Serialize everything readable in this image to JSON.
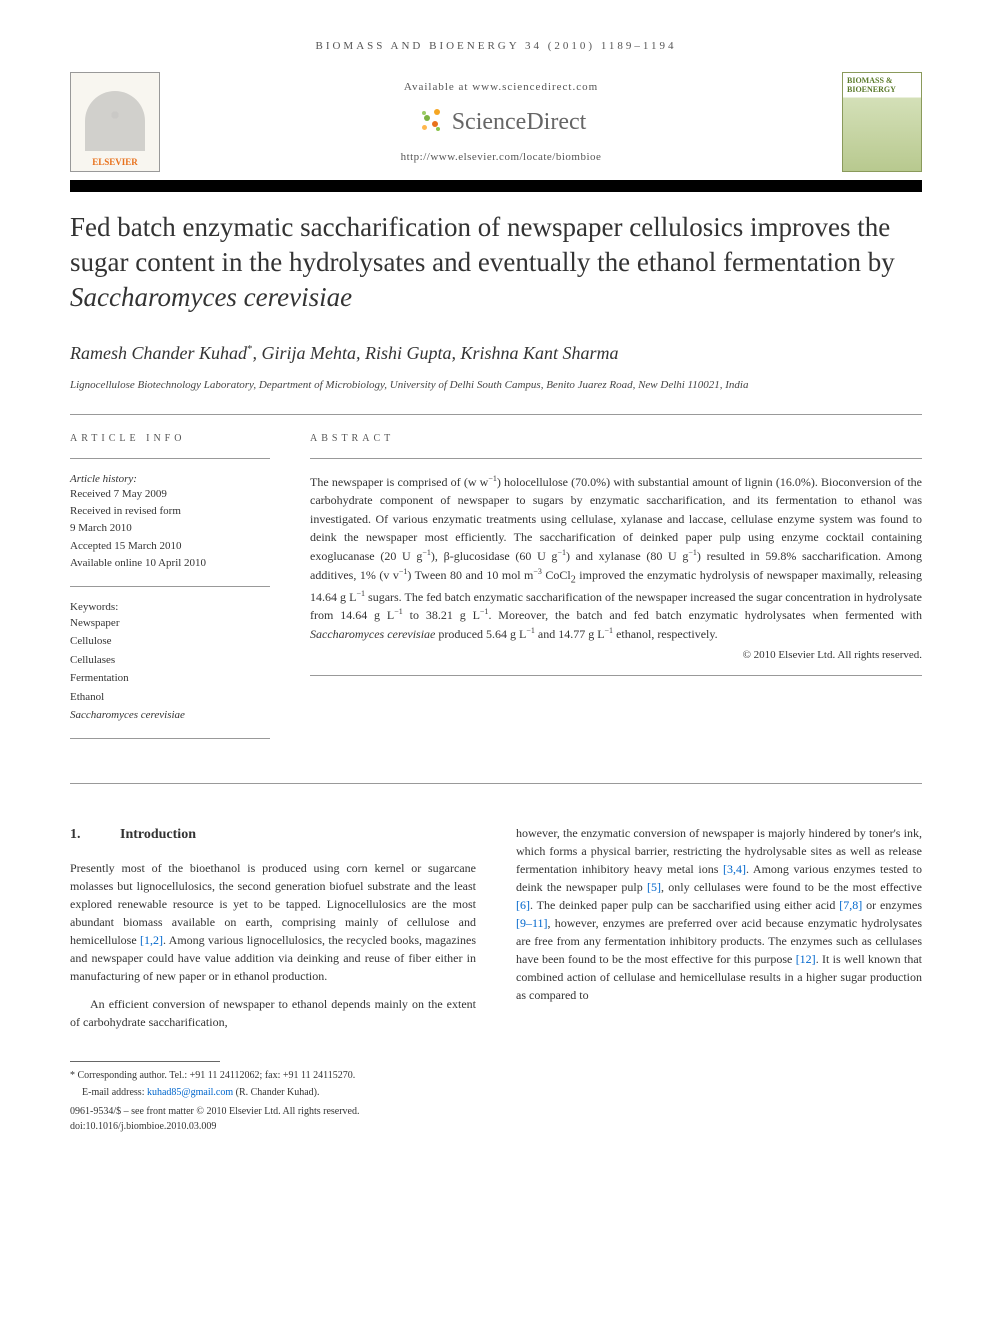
{
  "journal_header": "BIOMASS AND BIOENERGY 34 (2010) 1189–1194",
  "banner": {
    "available_at": "Available at www.sciencedirect.com",
    "sciencedirect": "ScienceDirect",
    "journal_url": "http://www.elsevier.com/locate/biombioe",
    "elsevier_label": "ELSEVIER",
    "cover_title": "BIOMASS & BIOENERGY"
  },
  "title_html": "Fed batch enzymatic saccharification of newspaper cellulosics improves the sugar content in the hydrolysates and eventually the ethanol fermentation by <em>Saccharomyces cerevisiae</em>",
  "authors_html": "Ramesh Chander Kuhad<sup>*</sup>, Girija Mehta, Rishi Gupta, Krishna Kant Sharma",
  "affiliation": "Lignocellulose Biotechnology Laboratory, Department of Microbiology, University of Delhi South Campus, Benito Juarez Road, New Delhi 110021, India",
  "info": {
    "heading": "ARTICLE INFO",
    "history_label": "Article history:",
    "history": [
      "Received 7 May 2009",
      "Received in revised form",
      "9 March 2010",
      "Accepted 15 March 2010",
      "Available online 10 April 2010"
    ],
    "keywords_label": "Keywords:",
    "keywords": [
      "Newspaper",
      "Cellulose",
      "Cellulases",
      "Fermentation",
      "Ethanol"
    ],
    "keywords_italic": "Saccharomyces cerevisiae"
  },
  "abstract": {
    "heading": "ABSTRACT",
    "text_html": "The newspaper is comprised of (w w<sup>−1</sup>) holocellulose (70.0%) with substantial amount of lignin (16.0%). Bioconversion of the carbohydrate component of newspaper to sugars by enzymatic saccharification, and its fermentation to ethanol was investigated. Of various enzymatic treatments using cellulase, xylanase and laccase, cellulase enzyme system was found to deink the newspaper most efficiently. The saccharification of deinked paper pulp using enzyme cocktail containing exoglucanase (20 U g<sup>−1</sup>), β-glucosidase (60 U g<sup>−1</sup>) and xylanase (80 U g<sup>−1</sup>) resulted in 59.8% saccharification. Among additives, 1% (v v<sup>−1</sup>) Tween 80 and 10 mol m<sup>−3</sup> CoCl<sub>2</sub> improved the enzymatic hydrolysis of newspaper maximally, releasing 14.64 g L<sup>−1</sup> sugars. The fed batch enzymatic saccharification of the newspaper increased the sugar concentration in hydrolysate from 14.64 g L<sup>−1</sup> to 38.21 g L<sup>−1</sup>. Moreover, the batch and fed batch enzymatic hydrolysates when fermented with <em>Saccharomyces cerevisiae</em> produced 5.64 g L<sup>−1</sup> and 14.77 g L<sup>−1</sup> ethanol, respectively.",
    "copyright": "© 2010 Elsevier Ltd. All rights reserved."
  },
  "section1": {
    "num": "1.",
    "title": "Introduction",
    "p1_html": "Presently most of the bioethanol is produced using corn kernel or sugarcane molasses but lignocellulosics, the second generation biofuel substrate and the least explored renewable resource is yet to be tapped. Lignocellulosics are the most abundant biomass available on earth, comprising mainly of cellulose and hemicellulose <span class=\"ref-link\">[1,2]</span>. Among various lignocellulosics, the recycled books, magazines and newspaper could have value addition via deinking and reuse of fiber either in manufacturing of new paper or in ethanol production.",
    "p2_html": "An efficient conversion of newspaper to ethanol depends mainly on the extent of carbohydrate saccharification,",
    "p3_html": "however, the enzymatic conversion of newspaper is majorly hindered by toner's ink, which forms a physical barrier, restricting the hydrolysable sites as well as release fermentation inhibitory heavy metal ions <span class=\"ref-link\">[3,4]</span>. Among various enzymes tested to deink the newspaper pulp <span class=\"ref-link\">[5]</span>, only cellulases were found to be the most effective <span class=\"ref-link\">[6]</span>. The deinked paper pulp can be saccharified using either acid <span class=\"ref-link\">[7,8]</span> or enzymes <span class=\"ref-link\">[9–11]</span>, however, enzymes are preferred over acid because enzymatic hydrolysates are free from any fermentation inhibitory products. The enzymes such as cellulases have been found to be the most effective for this purpose <span class=\"ref-link\">[12]</span>. It is well known that combined action of cellulase and hemicellulase results in a higher sugar production as compared to"
  },
  "footer": {
    "corresponding": "* Corresponding author. Tel.: +91 11 24112062; fax: +91 11 24115270.",
    "email_label": "E-mail address: ",
    "email": "kuhad85@gmail.com",
    "email_suffix": " (R. Chander Kuhad).",
    "issn": "0961-9534/$ – see front matter © 2010 Elsevier Ltd. All rights reserved.",
    "doi": "doi:10.1016/j.biombioe.2010.03.009"
  },
  "colors": {
    "ref_link": "#0066cc",
    "elsevier_orange": "#e8711c",
    "cover_green": "#5a7a2a"
  }
}
